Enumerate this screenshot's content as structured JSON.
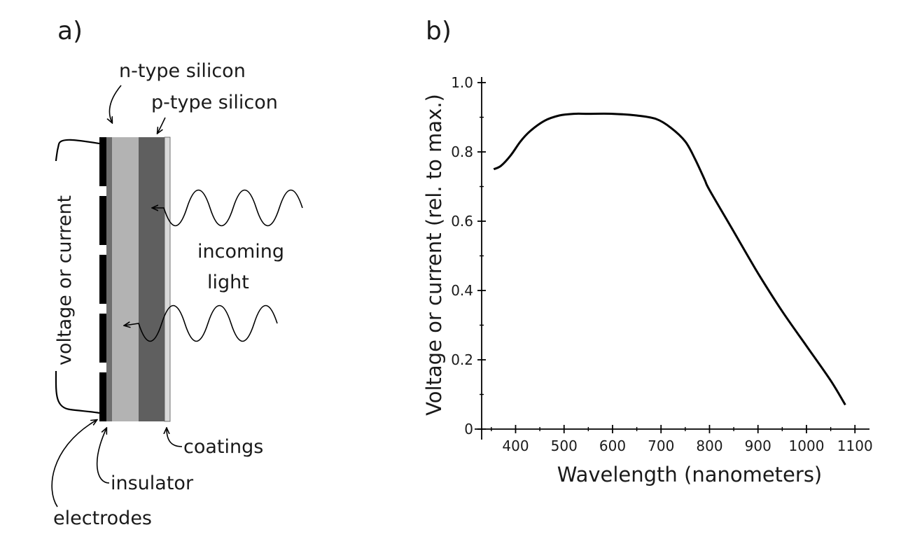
{
  "panel_a": {
    "label": "a)",
    "callouts": {
      "n_type": "n-type silicon",
      "p_type": "p-type silicon",
      "incoming_light_line1": "incoming",
      "incoming_light_line2": "light",
      "voltage": "voltage or current",
      "coatings": "coatings",
      "insulator": "insulator",
      "electrodes": "electrodes"
    },
    "layer_colors": {
      "electrode": "#000000",
      "insulator": "#6e6e6e",
      "n_type": "#b3b3b3",
      "p_type": "#5f5f5f",
      "coating": "#d9d9d9"
    }
  },
  "panel_b": {
    "label": "b)",
    "chart_data": {
      "type": "line",
      "title": "",
      "xlabel": "Wavelength (nanometers)",
      "ylabel": "Voltage or current (rel. to max.)",
      "xlim": [
        330,
        1130
      ],
      "ylim": [
        0,
        1.0
      ],
      "x_ticks": [
        400,
        500,
        600,
        700,
        800,
        900,
        1000,
        1100
      ],
      "x_tick_labels": [
        "400",
        "500",
        "600",
        "700",
        "800",
        "900",
        "1000",
        "1100"
      ],
      "y_ticks": [
        0,
        0.2,
        0.4,
        0.6,
        0.8,
        1.0
      ],
      "y_tick_labels": [
        "0",
        "0.2",
        "0.4",
        "0.6",
        "0.8",
        "1.0"
      ],
      "grid": false,
      "series": [
        {
          "x": [
            355,
            370,
            390,
            410,
            430,
            460,
            490,
            520,
            550,
            600,
            650,
            690,
            720,
            750,
            770,
            790,
            800,
            850,
            900,
            950,
            1000,
            1050,
            1080
          ],
          "y": [
            0.75,
            0.76,
            0.79,
            0.83,
            0.86,
            0.89,
            0.905,
            0.91,
            0.91,
            0.91,
            0.905,
            0.895,
            0.87,
            0.83,
            0.78,
            0.72,
            0.69,
            0.57,
            0.45,
            0.34,
            0.24,
            0.14,
            0.07
          ]
        }
      ]
    }
  }
}
